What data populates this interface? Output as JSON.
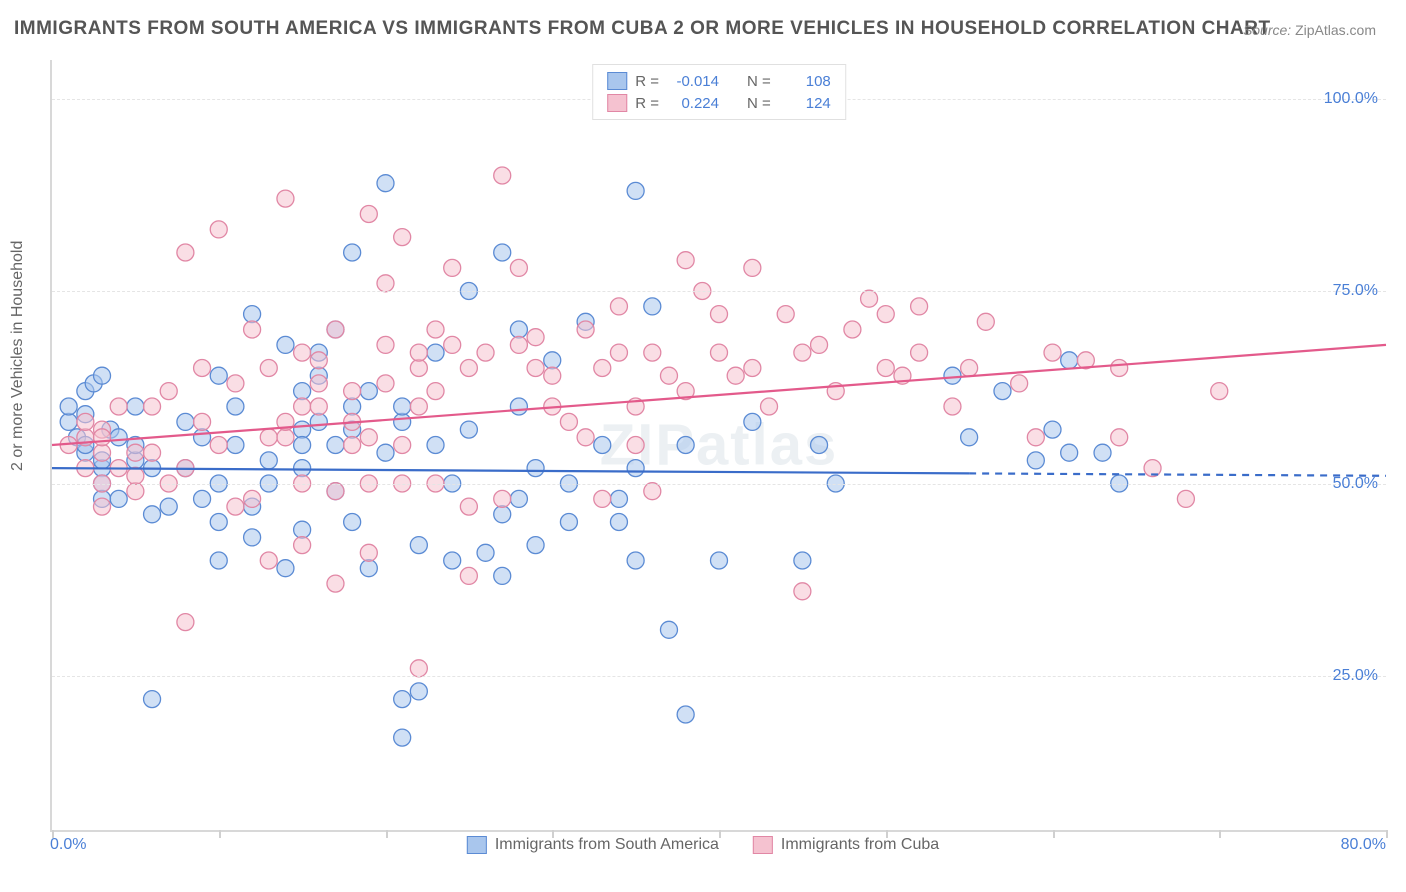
{
  "title": "IMMIGRANTS FROM SOUTH AMERICA VS IMMIGRANTS FROM CUBA 2 OR MORE VEHICLES IN HOUSEHOLD CORRELATION CHART",
  "source_label": "Source:",
  "source_value": "ZipAtlas.com",
  "watermark": "ZIPatlas",
  "y_axis_label": "2 or more Vehicles in Household",
  "chart": {
    "type": "scatter",
    "xlim": [
      0,
      80
    ],
    "ylim": [
      5,
      105
    ],
    "x_tick_min_label": "0.0%",
    "x_tick_max_label": "80.0%",
    "x_tick_positions": [
      0,
      10,
      20,
      30,
      40,
      50,
      60,
      70,
      80
    ],
    "y_grid": [
      {
        "value": 25,
        "label": "25.0%"
      },
      {
        "value": 50,
        "label": "50.0%"
      },
      {
        "value": 75,
        "label": "75.0%"
      },
      {
        "value": 100,
        "label": "100.0%"
      }
    ],
    "background_color": "#ffffff",
    "grid_color": "#e5e5e5",
    "axis_label_color": "#4a7fd6",
    "series": [
      {
        "id": "south_america",
        "name": "Immigrants from South America",
        "fill": "#a9c6ed",
        "stroke": "#5b8bd4",
        "line_color": "#3a6cc9",
        "line_dash_after_x": 55,
        "R": "-0.014",
        "N": "108",
        "trend": {
          "x1": 0,
          "y1": 52,
          "x2": 80,
          "y2": 51
        },
        "points": [
          [
            1,
            58
          ],
          [
            1,
            60
          ],
          [
            1.5,
            56
          ],
          [
            2,
            62
          ],
          [
            2,
            54
          ],
          [
            2.5,
            63
          ],
          [
            3,
            64
          ],
          [
            3,
            52
          ],
          [
            3.5,
            57
          ],
          [
            2,
            59
          ],
          [
            2,
            55
          ],
          [
            3,
            50
          ],
          [
            4,
            56
          ],
          [
            3,
            48
          ],
          [
            3,
            53
          ],
          [
            5,
            53
          ],
          [
            4,
            48
          ],
          [
            5,
            55
          ],
          [
            5,
            60
          ],
          [
            6,
            46
          ],
          [
            7,
            47
          ],
          [
            6,
            52
          ],
          [
            6,
            22
          ],
          [
            8,
            58
          ],
          [
            8,
            52
          ],
          [
            9,
            56
          ],
          [
            9,
            48
          ],
          [
            10,
            40
          ],
          [
            10,
            45
          ],
          [
            10,
            64
          ],
          [
            10,
            50
          ],
          [
            11,
            55
          ],
          [
            11,
            60
          ],
          [
            12,
            47
          ],
          [
            12,
            72
          ],
          [
            12,
            43
          ],
          [
            13,
            50
          ],
          [
            13,
            53
          ],
          [
            14,
            39
          ],
          [
            14,
            68
          ],
          [
            15,
            62
          ],
          [
            15,
            57
          ],
          [
            15,
            44
          ],
          [
            15,
            52
          ],
          [
            15,
            55
          ],
          [
            16,
            67
          ],
          [
            16,
            58
          ],
          [
            16,
            64
          ],
          [
            17,
            55
          ],
          [
            17,
            70
          ],
          [
            17,
            49
          ],
          [
            18,
            60
          ],
          [
            18,
            57
          ],
          [
            18,
            45
          ],
          [
            18,
            80
          ],
          [
            19,
            39
          ],
          [
            19,
            62
          ],
          [
            20,
            89
          ],
          [
            20,
            54
          ],
          [
            21,
            58
          ],
          [
            21,
            60
          ],
          [
            21,
            22
          ],
          [
            22,
            23
          ],
          [
            22,
            42
          ],
          [
            21,
            17
          ],
          [
            23,
            55
          ],
          [
            23,
            67
          ],
          [
            24,
            40
          ],
          [
            24,
            50
          ],
          [
            25,
            75
          ],
          [
            25,
            57
          ],
          [
            26,
            41
          ],
          [
            27,
            38
          ],
          [
            27,
            80
          ],
          [
            27,
            46
          ],
          [
            28,
            48
          ],
          [
            28,
            70
          ],
          [
            28,
            60
          ],
          [
            29,
            52
          ],
          [
            29,
            42
          ],
          [
            30,
            66
          ],
          [
            31,
            45
          ],
          [
            31,
            50
          ],
          [
            32,
            71
          ],
          [
            33,
            55
          ],
          [
            34,
            45
          ],
          [
            34,
            48
          ],
          [
            35,
            40
          ],
          [
            35,
            52
          ],
          [
            35,
            88
          ],
          [
            36,
            73
          ],
          [
            37,
            31
          ],
          [
            38,
            55
          ],
          [
            38,
            20
          ],
          [
            40,
            40
          ],
          [
            42,
            58
          ],
          [
            45,
            40
          ],
          [
            46,
            55
          ],
          [
            47,
            50
          ],
          [
            54,
            64
          ],
          [
            55,
            56
          ],
          [
            57,
            62
          ],
          [
            59,
            53
          ],
          [
            60,
            57
          ],
          [
            61,
            54
          ],
          [
            61,
            66
          ],
          [
            63,
            54
          ],
          [
            64,
            50
          ]
        ]
      },
      {
        "id": "cuba",
        "name": "Immigrants from Cuba",
        "fill": "#f5c2d0",
        "stroke": "#e187a5",
        "line_color": "#e35a8b",
        "R": "0.224",
        "N": "124",
        "trend": {
          "x1": 0,
          "y1": 55,
          "x2": 80,
          "y2": 68
        },
        "points": [
          [
            1,
            55
          ],
          [
            2,
            56
          ],
          [
            2,
            58
          ],
          [
            2,
            52
          ],
          [
            3,
            54
          ],
          [
            3,
            57
          ],
          [
            3,
            56
          ],
          [
            3,
            50
          ],
          [
            3,
            47
          ],
          [
            4,
            60
          ],
          [
            4,
            52
          ],
          [
            5,
            49
          ],
          [
            5,
            54
          ],
          [
            5,
            51
          ],
          [
            6,
            54
          ],
          [
            6,
            60
          ],
          [
            7,
            50
          ],
          [
            7,
            62
          ],
          [
            8,
            80
          ],
          [
            8,
            32
          ],
          [
            8,
            52
          ],
          [
            9,
            58
          ],
          [
            9,
            65
          ],
          [
            10,
            55
          ],
          [
            10,
            83
          ],
          [
            11,
            47
          ],
          [
            11,
            63
          ],
          [
            12,
            70
          ],
          [
            12,
            48
          ],
          [
            13,
            56
          ],
          [
            13,
            40
          ],
          [
            13,
            65
          ],
          [
            14,
            56
          ],
          [
            14,
            58
          ],
          [
            14,
            87
          ],
          [
            15,
            42
          ],
          [
            15,
            60
          ],
          [
            15,
            67
          ],
          [
            15,
            50
          ],
          [
            16,
            63
          ],
          [
            16,
            66
          ],
          [
            16,
            60
          ],
          [
            17,
            37
          ],
          [
            17,
            70
          ],
          [
            17,
            49
          ],
          [
            18,
            55
          ],
          [
            18,
            58
          ],
          [
            18,
            62
          ],
          [
            19,
            50
          ],
          [
            19,
            56
          ],
          [
            19,
            41
          ],
          [
            19,
            85
          ],
          [
            20,
            63
          ],
          [
            20,
            76
          ],
          [
            20,
            68
          ],
          [
            21,
            55
          ],
          [
            21,
            50
          ],
          [
            21,
            82
          ],
          [
            22,
            65
          ],
          [
            22,
            67
          ],
          [
            22,
            60
          ],
          [
            22,
            26
          ],
          [
            23,
            50
          ],
          [
            23,
            70
          ],
          [
            23,
            62
          ],
          [
            24,
            78
          ],
          [
            24,
            68
          ],
          [
            25,
            38
          ],
          [
            25,
            47
          ],
          [
            25,
            65
          ],
          [
            26,
            67
          ],
          [
            27,
            48
          ],
          [
            27,
            90
          ],
          [
            28,
            68
          ],
          [
            28,
            78
          ],
          [
            29,
            65
          ],
          [
            29,
            69
          ],
          [
            30,
            60
          ],
          [
            30,
            64
          ],
          [
            31,
            58
          ],
          [
            32,
            70
          ],
          [
            32,
            56
          ],
          [
            33,
            65
          ],
          [
            33,
            48
          ],
          [
            34,
            73
          ],
          [
            34,
            67
          ],
          [
            35,
            60
          ],
          [
            35,
            55
          ],
          [
            36,
            67
          ],
          [
            36,
            49
          ],
          [
            37,
            64
          ],
          [
            38,
            79
          ],
          [
            38,
            62
          ],
          [
            39,
            75
          ],
          [
            40,
            67
          ],
          [
            40,
            72
          ],
          [
            41,
            64
          ],
          [
            42,
            78
          ],
          [
            42,
            65
          ],
          [
            43,
            60
          ],
          [
            44,
            72
          ],
          [
            45,
            36
          ],
          [
            45,
            67
          ],
          [
            46,
            68
          ],
          [
            47,
            62
          ],
          [
            48,
            70
          ],
          [
            49,
            74
          ],
          [
            50,
            72
          ],
          [
            50,
            65
          ],
          [
            51,
            64
          ],
          [
            52,
            73
          ],
          [
            52,
            67
          ],
          [
            54,
            60
          ],
          [
            55,
            65
          ],
          [
            56,
            71
          ],
          [
            58,
            63
          ],
          [
            59,
            56
          ],
          [
            60,
            67
          ],
          [
            62,
            66
          ],
          [
            64,
            65
          ],
          [
            64,
            56
          ],
          [
            66,
            52
          ],
          [
            68,
            48
          ],
          [
            70,
            62
          ]
        ]
      }
    ]
  },
  "legend_top": {
    "rows": [
      {
        "series": "south_america",
        "R_label": "R =",
        "N_label": "N ="
      },
      {
        "series": "cuba",
        "R_label": "R =",
        "N_label": "N ="
      }
    ]
  },
  "legend_bottom_items": [
    {
      "series": "south_america"
    },
    {
      "series": "cuba"
    }
  ]
}
